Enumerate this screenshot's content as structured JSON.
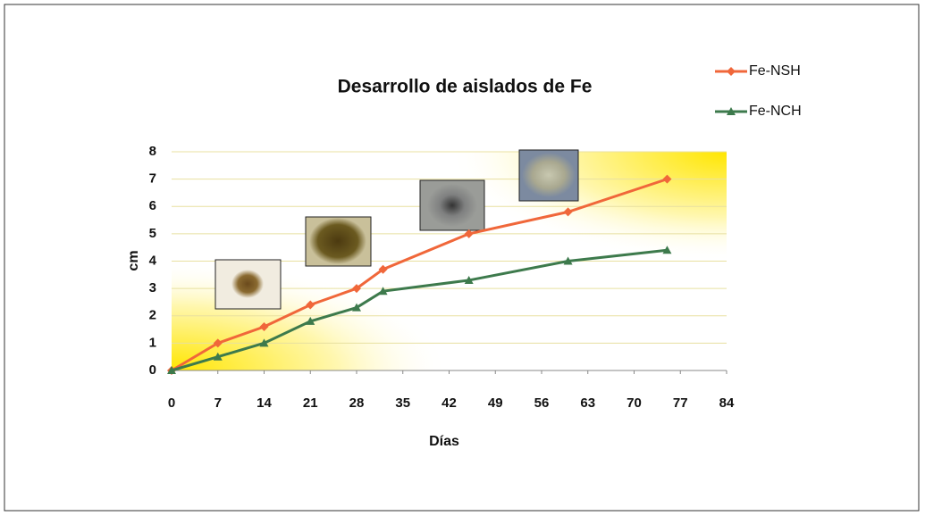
{
  "chart_data": {
    "type": "line",
    "title": "Desarrollo de aislados de Fe",
    "x_label": "Días",
    "y_label": "cm",
    "x": [
      0,
      7,
      14,
      21,
      28,
      32,
      45,
      60,
      75
    ],
    "series": [
      {
        "name": "Fe-NSH",
        "color": "#f0673a",
        "marker": "diamond",
        "values": [
          0,
          1,
          1.6,
          2.4,
          3,
          3.7,
          5,
          5.8,
          7
        ]
      },
      {
        "name": "Fe-NCH",
        "color": "#3d7a4c",
        "marker": "triangle",
        "values": [
          0,
          0.5,
          1,
          1.8,
          2.3,
          2.9,
          3.3,
          4,
          4.4
        ]
      }
    ],
    "xlim": [
      0,
      84
    ],
    "xticks": [
      0,
      7,
      14,
      21,
      28,
      35,
      42,
      49,
      56,
      63,
      70,
      77,
      84
    ],
    "ylim": [
      0,
      8
    ],
    "yticks": [
      0,
      1,
      2,
      3,
      4,
      5,
      6,
      7,
      8
    ],
    "grid": true,
    "legend": "top-right"
  }
}
